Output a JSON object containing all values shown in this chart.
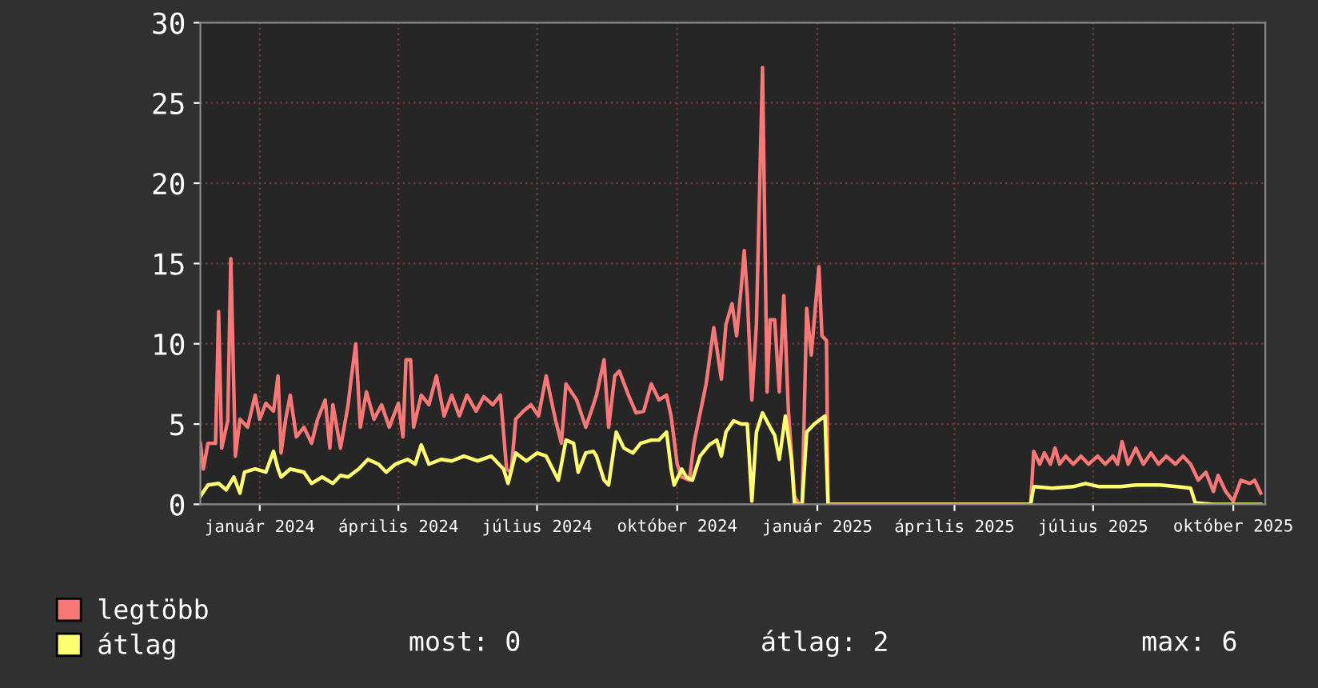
{
  "chart_data": {
    "type": "line",
    "xlim": [
      "2023-11-23",
      "2025-10-22"
    ],
    "ylim": [
      0,
      30
    ],
    "yticks": [
      0,
      5,
      10,
      15,
      20,
      25,
      30
    ],
    "xticks": [
      {
        "value": "2024-01-01",
        "label": "január 2024"
      },
      {
        "value": "2024-04-01",
        "label": "április 2024"
      },
      {
        "value": "2024-07-01",
        "label": "július 2024"
      },
      {
        "value": "2024-10-01",
        "label": "október 2024"
      },
      {
        "value": "2025-01-01",
        "label": "január 2025"
      },
      {
        "value": "2025-04-01",
        "label": "április 2025"
      },
      {
        "value": "2025-07-01",
        "label": "július 2025"
      },
      {
        "value": "2025-10-01",
        "label": "október 2025"
      }
    ],
    "grid": true,
    "legend": "bottom",
    "marker": "none",
    "line_style": "solid",
    "annotations": [
      "most: 0",
      "átlag: 2",
      "max: 6"
    ],
    "series": [
      {
        "name": "legtöbb",
        "color": "#f87878",
        "x": [
          "2023-11-23",
          "2023-11-25",
          "2023-11-28",
          "2023-12-03",
          "2023-12-05",
          "2023-12-07",
          "2023-12-11",
          "2023-12-13",
          "2023-12-16",
          "2023-12-19",
          "2023-12-24",
          "2023-12-29",
          "2024-01-01",
          "2024-01-05",
          "2024-01-10",
          "2024-01-13",
          "2024-01-15",
          "2024-01-18",
          "2024-01-21",
          "2024-01-25",
          "2024-01-30",
          "2024-02-04",
          "2024-02-08",
          "2024-02-13",
          "2024-02-16",
          "2024-02-18",
          "2024-02-23",
          "2024-02-28",
          "2024-03-01",
          "2024-03-04",
          "2024-03-07",
          "2024-03-11",
          "2024-03-16",
          "2024-03-21",
          "2024-03-26",
          "2024-04-01",
          "2024-04-04",
          "2024-04-06",
          "2024-04-09",
          "2024-04-11",
          "2024-04-16",
          "2024-04-21",
          "2024-04-26",
          "2024-05-01",
          "2024-05-06",
          "2024-05-11",
          "2024-05-16",
          "2024-05-22",
          "2024-05-27",
          "2024-06-02",
          "2024-06-07",
          "2024-06-11",
          "2024-06-14",
          "2024-06-17",
          "2024-06-22",
          "2024-06-27",
          "2024-07-02",
          "2024-07-07",
          "2024-07-13",
          "2024-07-17",
          "2024-07-20",
          "2024-07-27",
          "2024-08-02",
          "2024-08-07",
          "2024-08-09",
          "2024-08-14",
          "2024-08-17",
          "2024-08-21",
          "2024-08-24",
          "2024-08-30",
          "2024-09-04",
          "2024-09-09",
          "2024-09-14",
          "2024-09-19",
          "2024-09-24",
          "2024-09-27",
          "2024-10-01",
          "2024-10-04",
          "2024-10-09",
          "2024-10-12",
          "2024-10-20",
          "2024-10-25",
          "2024-10-30",
          "2024-11-02",
          "2024-11-06",
          "2024-11-09",
          "2024-11-12",
          "2024-11-14",
          "2024-11-16",
          "2024-11-19",
          "2024-11-22",
          "2024-11-26",
          "2024-11-29",
          "2024-12-01",
          "2024-12-04",
          "2024-12-07",
          "2024-12-10",
          "2024-12-13",
          "2024-12-17",
          "2024-12-20",
          "2024-12-22",
          "2024-12-25",
          "2024-12-28",
          "2025-01-02",
          "2025-01-04",
          "2025-01-07",
          "2025-01-08",
          "2025-05-21",
          "2025-05-23",
          "2025-05-27",
          "2025-05-30",
          "2025-06-03",
          "2025-06-06",
          "2025-06-09",
          "2025-06-13",
          "2025-06-18",
          "2025-06-23",
          "2025-06-28",
          "2025-07-04",
          "2025-07-09",
          "2025-07-14",
          "2025-07-17",
          "2025-07-20",
          "2025-07-24",
          "2025-07-29",
          "2025-08-03",
          "2025-08-08",
          "2025-08-13",
          "2025-08-18",
          "2025-08-24",
          "2025-08-29",
          "2025-09-03",
          "2025-09-08",
          "2025-09-13",
          "2025-09-18",
          "2025-09-21",
          "2025-09-26",
          "2025-10-01",
          "2025-10-06",
          "2025-10-12",
          "2025-10-15",
          "2025-10-19"
        ],
        "values": [
          3.8,
          2.2,
          3.8,
          3.8,
          12.0,
          3.5,
          5.2,
          15.3,
          3.0,
          5.3,
          4.8,
          6.8,
          5.3,
          6.3,
          5.8,
          8.0,
          3.2,
          5.3,
          6.8,
          4.2,
          4.8,
          3.8,
          5.3,
          6.5,
          3.5,
          6.2,
          3.5,
          6.2,
          7.8,
          10.0,
          4.8,
          7.0,
          5.3,
          6.2,
          4.8,
          6.3,
          4.2,
          9.0,
          9.0,
          4.8,
          6.8,
          6.2,
          8.0,
          5.5,
          6.8,
          5.5,
          6.8,
          5.8,
          6.7,
          6.2,
          6.8,
          2.2,
          2.0,
          5.3,
          5.8,
          6.2,
          5.5,
          8.0,
          5.3,
          3.8,
          7.5,
          6.5,
          4.8,
          6.2,
          6.8,
          9.0,
          4.8,
          8.0,
          8.3,
          6.8,
          5.7,
          5.8,
          7.5,
          6.5,
          6.8,
          5.5,
          2.5,
          1.7,
          1.5,
          3.8,
          7.5,
          11.0,
          7.8,
          11.2,
          12.5,
          10.5,
          13.5,
          15.8,
          13.0,
          6.5,
          11.2,
          27.2,
          7.0,
          11.5,
          11.5,
          7.0,
          13.0,
          5.8,
          0.5,
          0,
          0,
          12.2,
          9.3,
          14.8,
          10.5,
          10.2,
          0,
          0,
          3.3,
          2.5,
          3.2,
          2.5,
          3.5,
          2.5,
          3.0,
          2.5,
          3.0,
          2.5,
          3.0,
          2.5,
          3.0,
          2.5,
          3.9,
          2.5,
          3.5,
          2.5,
          3.2,
          2.5,
          3.0,
          2.5,
          3.0,
          2.5,
          1.5,
          2.0,
          0.8,
          1.8,
          0.8,
          0.2,
          1.5,
          1.3,
          1.5,
          0.7
        ]
      },
      {
        "name": "átlag",
        "color": "#ffff70",
        "x": [
          "2023-11-23",
          "2023-11-28",
          "2023-12-05",
          "2023-12-10",
          "2023-12-15",
          "2023-12-19",
          "2023-12-22",
          "2023-12-29",
          "2024-01-05",
          "2024-01-10",
          "2024-01-13",
          "2024-01-15",
          "2024-01-21",
          "2024-01-30",
          "2024-02-04",
          "2024-02-11",
          "2024-02-18",
          "2024-02-23",
          "2024-02-28",
          "2024-03-06",
          "2024-03-12",
          "2024-03-19",
          "2024-03-24",
          "2024-03-30",
          "2024-04-07",
          "2024-04-12",
          "2024-04-16",
          "2024-04-21",
          "2024-04-29",
          "2024-05-06",
          "2024-05-14",
          "2024-05-23",
          "2024-06-01",
          "2024-06-09",
          "2024-06-12",
          "2024-06-17",
          "2024-06-24",
          "2024-07-01",
          "2024-07-07",
          "2024-07-15",
          "2024-07-20",
          "2024-07-25",
          "2024-07-28",
          "2024-08-02",
          "2024-08-07",
          "2024-08-09",
          "2024-08-14",
          "2024-08-17",
          "2024-08-22",
          "2024-08-27",
          "2024-09-02",
          "2024-09-07",
          "2024-09-14",
          "2024-09-19",
          "2024-09-24",
          "2024-09-27",
          "2024-09-29",
          "2024-10-04",
          "2024-10-07",
          "2024-10-11",
          "2024-10-16",
          "2024-10-22",
          "2024-10-27",
          "2024-10-30",
          "2024-11-02",
          "2024-11-07",
          "2024-11-12",
          "2024-11-16",
          "2024-11-19",
          "2024-11-22",
          "2024-11-26",
          "2024-12-01",
          "2024-12-04",
          "2024-12-07",
          "2024-12-11",
          "2024-12-15",
          "2024-12-17",
          "2024-12-22",
          "2024-12-25",
          "2024-12-30",
          "2025-01-06",
          "2025-01-08",
          "2025-05-21",
          "2025-05-23",
          "2025-06-04",
          "2025-06-18",
          "2025-06-26",
          "2025-07-05",
          "2025-07-19",
          "2025-07-29",
          "2025-08-14",
          "2025-08-25",
          "2025-09-03",
          "2025-09-06",
          "2025-09-18",
          "2025-10-19"
        ],
        "values": [
          0.5,
          1.2,
          1.3,
          0.9,
          1.7,
          0.7,
          2.0,
          2.2,
          2.0,
          3.3,
          2.2,
          1.7,
          2.2,
          2.0,
          1.3,
          1.7,
          1.3,
          1.8,
          1.7,
          2.2,
          2.8,
          2.5,
          2.0,
          2.5,
          2.8,
          2.5,
          3.7,
          2.5,
          2.8,
          2.7,
          3.0,
          2.7,
          3.0,
          2.2,
          1.3,
          3.2,
          2.7,
          3.2,
          3.0,
          1.5,
          4.0,
          3.8,
          2.0,
          3.2,
          3.3,
          3.0,
          1.5,
          1.2,
          4.5,
          3.5,
          3.2,
          3.8,
          4.0,
          4.0,
          4.5,
          2.2,
          1.2,
          2.2,
          1.7,
          1.5,
          3.0,
          3.7,
          4.0,
          3.0,
          4.5,
          5.2,
          5.0,
          5.0,
          0.2,
          4.5,
          5.7,
          4.8,
          4.3,
          2.8,
          5.5,
          2.8,
          0,
          0,
          4.5,
          5.0,
          5.5,
          0,
          0,
          1.1,
          1.0,
          1.1,
          1.3,
          1.1,
          1.1,
          1.2,
          1.2,
          1.1,
          1.0,
          0.1,
          0,
          0
        ]
      }
    ]
  }
}
